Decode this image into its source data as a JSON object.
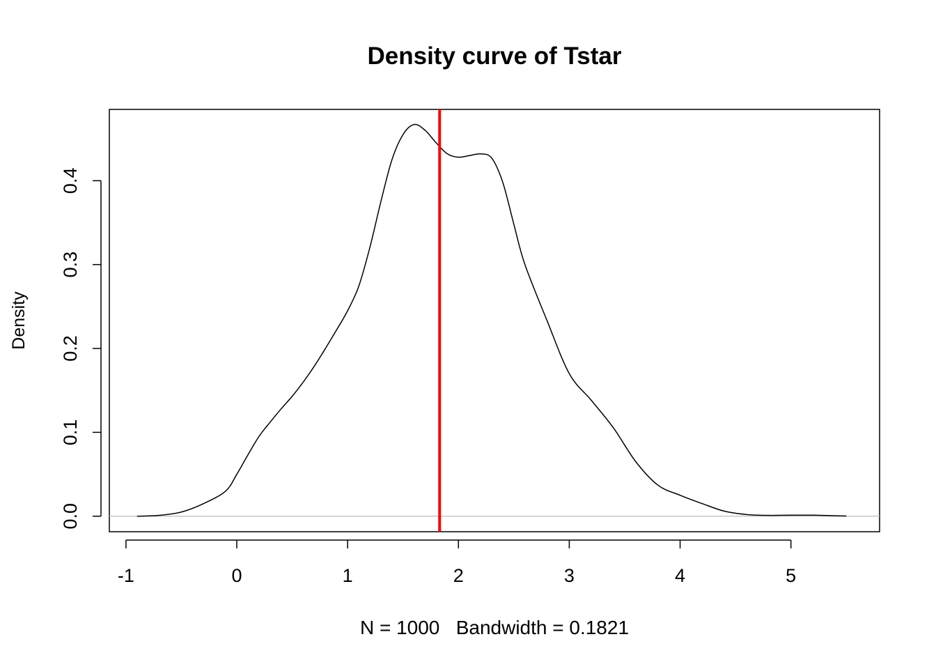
{
  "chart_data": {
    "type": "line",
    "title": "Density curve of Tstar",
    "xlabel": "N = 1000   Bandwidth = 0.1821",
    "ylabel": "Density",
    "xlim": [
      -1.15,
      5.8
    ],
    "ylim": [
      -0.0185,
      0.485
    ],
    "x_ticks": [
      -1,
      0,
      1,
      2,
      3,
      4,
      5
    ],
    "x_tick_labels": [
      "-1",
      "0",
      "1",
      "2",
      "3",
      "4",
      "5"
    ],
    "y_ticks": [
      0.0,
      0.1,
      0.2,
      0.3,
      0.4
    ],
    "y_tick_labels": [
      "0.0",
      "0.1",
      "0.2",
      "0.3",
      "0.4"
    ],
    "grid": false,
    "baseline": 0,
    "vline": {
      "x": 1.83,
      "color": "#ff0000"
    },
    "series": [
      {
        "color": "#000000",
        "x": [
          -0.9,
          -0.7,
          -0.5,
          -0.3,
          -0.1,
          0.0,
          0.1,
          0.2,
          0.3,
          0.4,
          0.5,
          0.6,
          0.7,
          0.8,
          0.9,
          1.0,
          1.1,
          1.2,
          1.3,
          1.4,
          1.5,
          1.6,
          1.7,
          1.8,
          1.9,
          2.0,
          2.1,
          2.2,
          2.3,
          2.4,
          2.5,
          2.6,
          2.8,
          3.0,
          3.2,
          3.4,
          3.6,
          3.8,
          4.0,
          4.2,
          4.4,
          4.6,
          4.8,
          5.0,
          5.2,
          5.5
        ],
        "y": [
          0.0,
          0.001,
          0.005,
          0.015,
          0.03,
          0.05,
          0.073,
          0.095,
          0.112,
          0.128,
          0.143,
          0.16,
          0.179,
          0.2,
          0.222,
          0.245,
          0.274,
          0.32,
          0.375,
          0.425,
          0.455,
          0.467,
          0.46,
          0.445,
          0.432,
          0.428,
          0.43,
          0.432,
          0.427,
          0.398,
          0.348,
          0.3,
          0.233,
          0.17,
          0.138,
          0.105,
          0.065,
          0.037,
          0.025,
          0.015,
          0.006,
          0.002,
          0.001,
          0.0012,
          0.0012,
          0.0002
        ]
      }
    ]
  }
}
